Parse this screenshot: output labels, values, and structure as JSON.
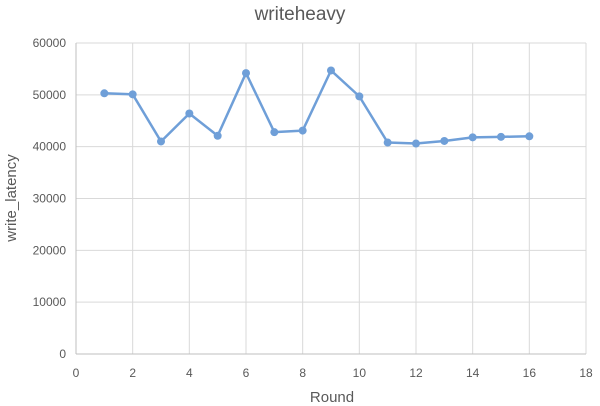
{
  "chart_data": {
    "type": "line",
    "title": "writeheavy",
    "xlabel": "Round",
    "ylabel": "write_latency",
    "xlim": [
      0,
      18
    ],
    "ylim": [
      0,
      60000
    ],
    "x_ticks": [
      0,
      2,
      4,
      6,
      8,
      10,
      12,
      14,
      16,
      18
    ],
    "y_ticks": [
      0,
      10000,
      20000,
      30000,
      40000,
      50000,
      60000
    ],
    "grid": true,
    "legend": "none",
    "series": [
      {
        "color": "#6f9fd8",
        "x": [
          1,
          2,
          3,
          4,
          5,
          6,
          7,
          8,
          9,
          10,
          11,
          12,
          13,
          14,
          15,
          16
        ],
        "y": [
          50300,
          50100,
          41000,
          46400,
          42100,
          54200,
          42800,
          43100,
          54700,
          49700,
          40800,
          40600,
          41100,
          41800,
          41900,
          42000
        ]
      }
    ]
  }
}
